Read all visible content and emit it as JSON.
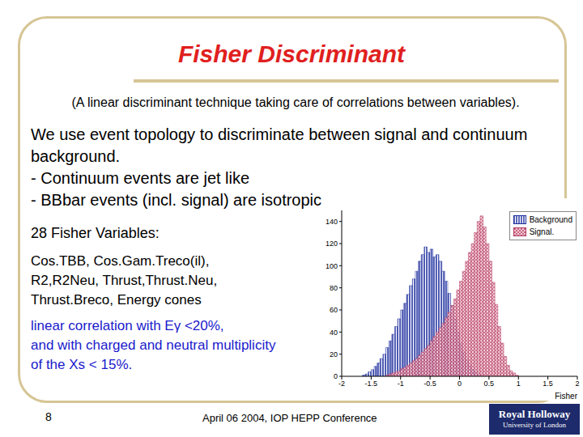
{
  "slide": {
    "title": "Fisher Discriminant",
    "subtitle": "(A linear discriminant technique taking care of correlations between variables).",
    "body": [
      "We use event topology to discriminate between signal and continuum",
      "background.",
      "- Continuum events are jet like",
      "- BBbar events (incl. signal) are isotropic"
    ],
    "variables_heading": "28 Fisher Variables:",
    "variables": [
      "Cos.TBB, Cos.Gam.Treco(il),",
      "R2,R2Neu, Thrust,Thrust.Neu,",
      "Thrust.Breco, Energy cones"
    ],
    "correlation": [
      "linear correlation with Eγ <20%,",
      "and with charged and neutral multiplicity",
      "of the Xs < 15%."
    ],
    "page_number": "8",
    "footer": "April 06 2004, IOP HEPP Conference",
    "logo": [
      "Royal Holloway",
      "University of London"
    ]
  },
  "chart_data": {
    "type": "histogram",
    "x_label": "Fisher",
    "legend": "top right",
    "xlim": [
      -2,
      2
    ],
    "ylim": [
      0,
      150
    ],
    "xticks": [
      -2,
      -1.5,
      -1,
      -0.5,
      0,
      0.5,
      1,
      1.5,
      2
    ],
    "yticks": [
      0,
      20,
      40,
      60,
      80,
      100,
      120,
      140
    ],
    "bins": [
      -2,
      -1.95,
      -1.9,
      -1.85,
      -1.8,
      -1.75,
      -1.7,
      -1.65,
      -1.6,
      -1.55,
      -1.5,
      -1.45,
      -1.4,
      -1.35,
      -1.3,
      -1.25,
      -1.2,
      -1.15,
      -1.1,
      -1.05,
      -1,
      -0.95,
      -0.9,
      -0.85,
      -0.8,
      -0.75,
      -0.7,
      -0.65,
      -0.6,
      -0.55,
      -0.5,
      -0.45,
      -0.4,
      -0.35,
      -0.3,
      -0.25,
      -0.2,
      -0.15,
      -0.1,
      -0.05,
      0,
      0.05,
      0.1,
      0.15,
      0.2,
      0.25,
      0.3,
      0.35,
      0.4,
      0.45,
      0.5,
      0.55,
      0.6,
      0.65,
      0.7,
      0.75,
      0.8,
      0.85,
      0.9,
      0.95,
      1,
      1.05,
      1.1,
      1.15,
      1.2,
      1.25,
      1.3,
      1.35,
      1.4,
      1.45,
      1.5,
      1.55,
      1.6,
      1.65,
      1.7,
      1.75,
      1.8,
      1.85,
      1.9,
      1.95,
      2
    ],
    "series": [
      {
        "name": "Background",
        "color": "#1c2d9e",
        "values": [
          0,
          0,
          0,
          0,
          0,
          0,
          0,
          1,
          2,
          4,
          6,
          9,
          12,
          16,
          20,
          26,
          32,
          38,
          45,
          52,
          60,
          66,
          74,
          82,
          88,
          95,
          104,
          110,
          117,
          112,
          115,
          108,
          110,
          104,
          95,
          86,
          75,
          64,
          52,
          40,
          30,
          22,
          15,
          10,
          6,
          4,
          2,
          1,
          0,
          0,
          0,
          0,
          0,
          0,
          0,
          0,
          0,
          0,
          0,
          0,
          0,
          0,
          0,
          0,
          0,
          0,
          0,
          0,
          0,
          0,
          0,
          0,
          0,
          0,
          0,
          0,
          0,
          0,
          0,
          0
        ]
      },
      {
        "name": "Signal.",
        "color": "#b03a62",
        "values": [
          0,
          0,
          0,
          0,
          0,
          0,
          0,
          0,
          0,
          0,
          0,
          0,
          0,
          0,
          0,
          1,
          2,
          3,
          4,
          5,
          7,
          8,
          10,
          12,
          14,
          16,
          19,
          22,
          25,
          28,
          32,
          36,
          40,
          44,
          48,
          53,
          58,
          64,
          70,
          78,
          86,
          95,
          104,
          112,
          120,
          130,
          140,
          145,
          135,
          120,
          104,
          85,
          65,
          45,
          30,
          18,
          10,
          5,
          3,
          1,
          0,
          0,
          0,
          0,
          0,
          0,
          0,
          0,
          0,
          0,
          0,
          0,
          0,
          0,
          0,
          0,
          0,
          0,
          0,
          0
        ]
      }
    ]
  }
}
